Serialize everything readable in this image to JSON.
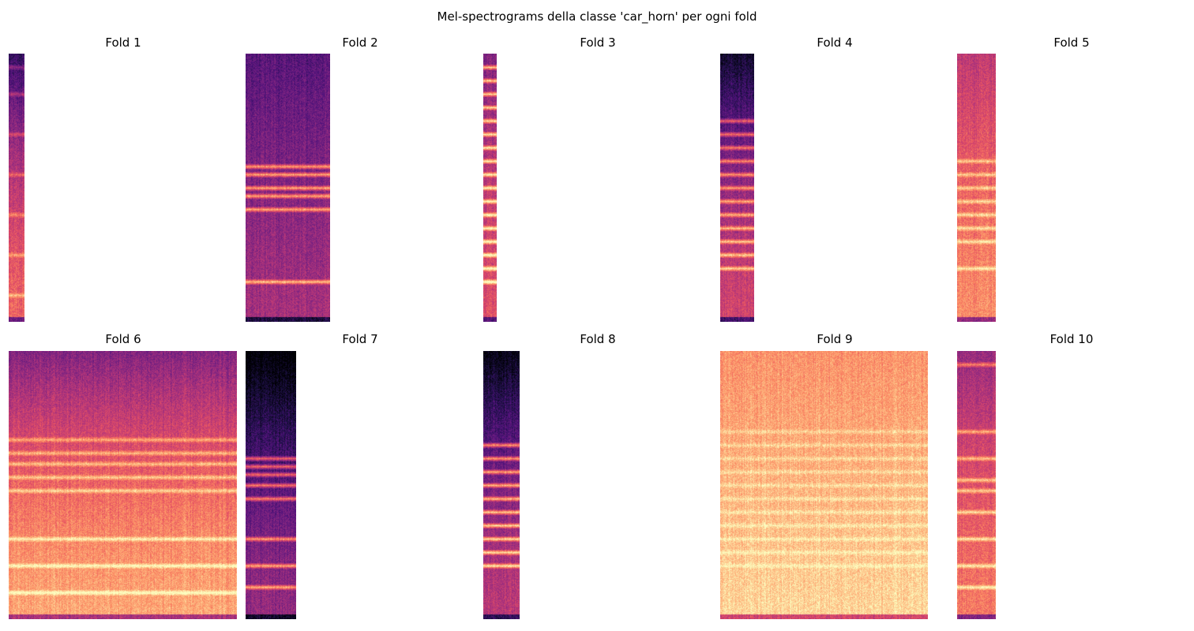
{
  "figure": {
    "suptitle": "Mel-spectrograms della classe 'car_horn' per ogni fold"
  },
  "chart_data": {
    "type": "heatmap",
    "colormap": "magma",
    "axes_visible": false,
    "panels": [
      {
        "title": "Fold 1",
        "frames_fraction": 0.07,
        "base": 0.6,
        "top_dark": 0.35,
        "band_strength": 0.2,
        "bands": [
          0.05,
          0.15,
          0.3,
          0.45,
          0.6,
          0.75,
          0.9
        ]
      },
      {
        "title": "Fold 2",
        "frames_fraction": 0.37,
        "base": 0.4,
        "top_dark": 0.05,
        "band_strength": 0.45,
        "bands": [
          0.42,
          0.45,
          0.5,
          0.53,
          0.58,
          0.85
        ]
      },
      {
        "title": "Fold 3",
        "frames_fraction": 0.06,
        "base": 0.55,
        "top_dark": 0.1,
        "band_strength": 0.5,
        "bands": [
          0.05,
          0.1,
          0.15,
          0.2,
          0.25,
          0.3,
          0.35,
          0.4,
          0.45,
          0.5,
          0.55,
          0.6,
          0.65,
          0.7,
          0.75,
          0.8,
          0.85
        ]
      },
      {
        "title": "Fold 4",
        "frames_fraction": 0.15,
        "base": 0.5,
        "top_dark": 0.35,
        "band_strength": 0.4,
        "bands": [
          0.25,
          0.3,
          0.35,
          0.4,
          0.45,
          0.5,
          0.55,
          0.6,
          0.65,
          0.7,
          0.75,
          0.8
        ]
      },
      {
        "title": "Fold 5",
        "frames_fraction": 0.17,
        "base": 0.7,
        "top_dark": 0.1,
        "band_strength": 0.25,
        "bands": [
          0.4,
          0.45,
          0.5,
          0.55,
          0.6,
          0.65,
          0.7,
          0.8
        ]
      },
      {
        "title": "Fold 6",
        "frames_fraction": 1.0,
        "base": 0.75,
        "top_dark": 0.3,
        "band_strength": 0.25,
        "bands": [
          0.33,
          0.38,
          0.42,
          0.47,
          0.52,
          0.7,
          0.8,
          0.9
        ]
      },
      {
        "title": "Fold 7",
        "frames_fraction": 0.22,
        "base": 0.35,
        "top_dark": 0.3,
        "band_strength": 0.45,
        "bands": [
          0.4,
          0.43,
          0.46,
          0.5,
          0.55,
          0.7,
          0.8,
          0.88
        ]
      },
      {
        "title": "Fold 8",
        "frames_fraction": 0.16,
        "base": 0.45,
        "top_dark": 0.35,
        "band_strength": 0.5,
        "bands": [
          0.35,
          0.4,
          0.45,
          0.5,
          0.55,
          0.6,
          0.65,
          0.7,
          0.75,
          0.8
        ]
      },
      {
        "title": "Fold 9",
        "frames_fraction": 0.91,
        "base": 0.85,
        "top_dark": 0.0,
        "band_strength": 0.1,
        "bands": [
          0.3,
          0.35,
          0.4,
          0.45,
          0.5,
          0.55,
          0.6,
          0.65,
          0.7,
          0.75,
          0.8
        ]
      },
      {
        "title": "Fold 10",
        "frames_fraction": 0.17,
        "base": 0.65,
        "top_dark": 0.15,
        "band_strength": 0.3,
        "bands": [
          0.05,
          0.3,
          0.4,
          0.48,
          0.52,
          0.6,
          0.7,
          0.8,
          0.88
        ]
      }
    ]
  }
}
